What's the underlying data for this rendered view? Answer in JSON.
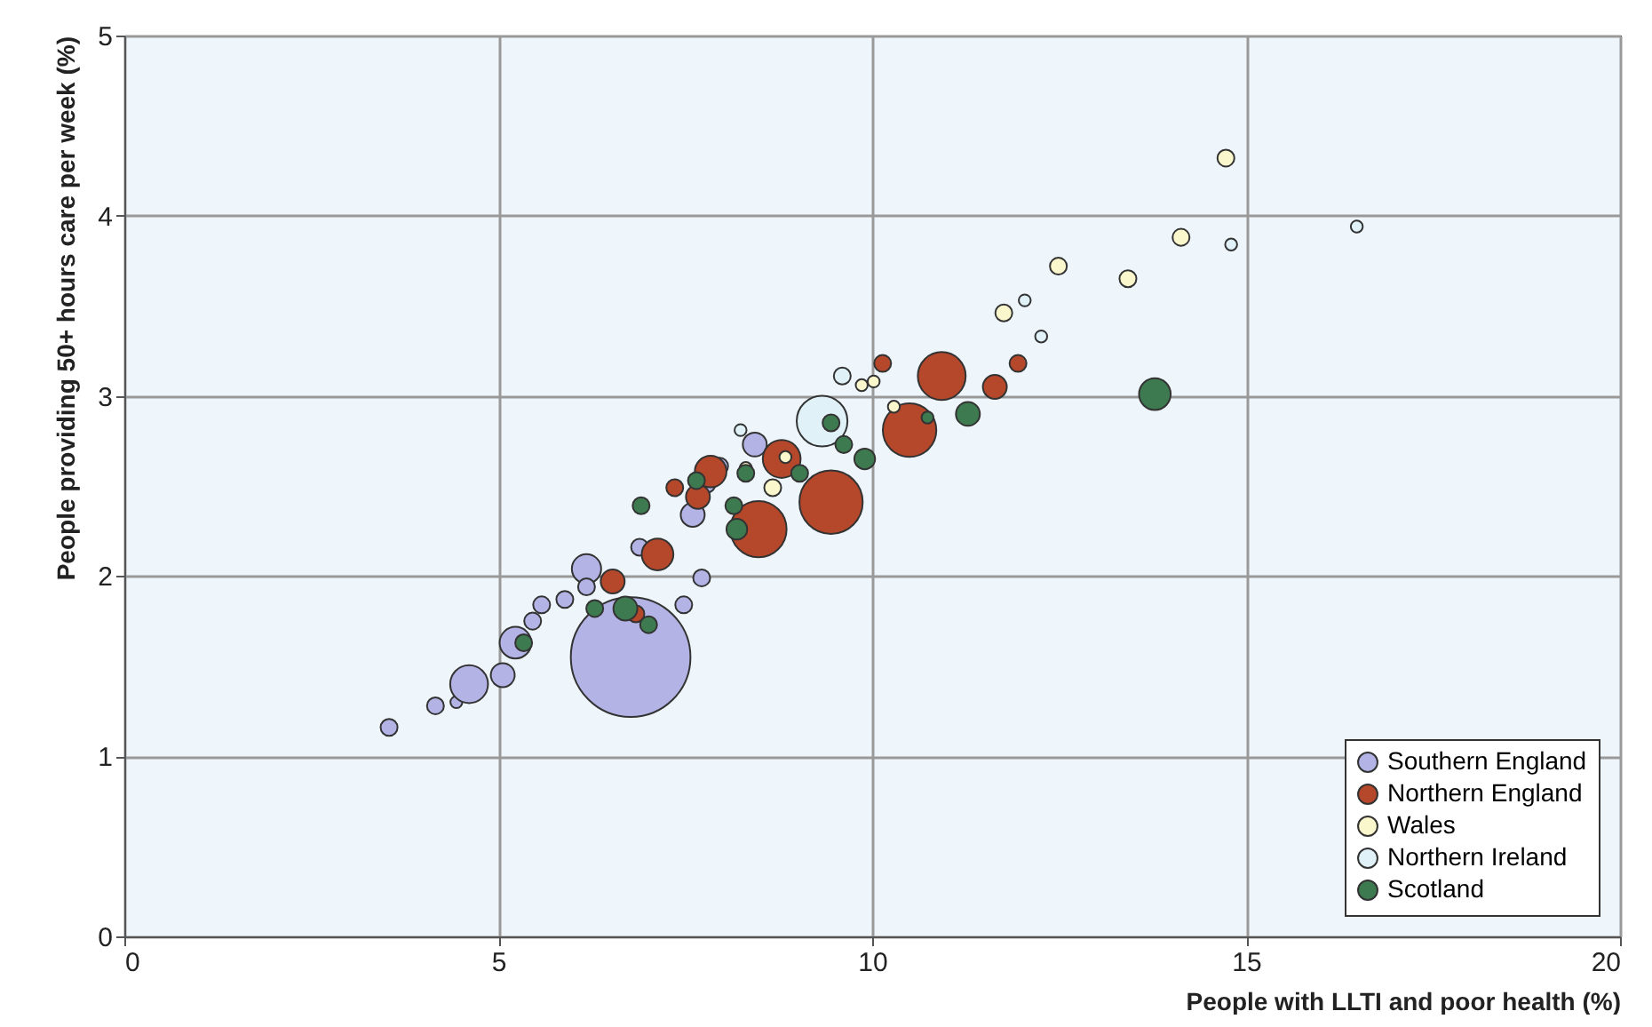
{
  "chart_data": {
    "type": "bubble",
    "xlabel": "People with LLTI and poor health (%)",
    "ylabel": "People providing 50+ hours care per week (%)",
    "xlim": [
      0,
      20
    ],
    "xticks": [
      0,
      5,
      10,
      15,
      20
    ],
    "ylim": [
      0,
      5
    ],
    "yticks": [
      0,
      1,
      2,
      3,
      4,
      5
    ],
    "grid": true,
    "legend": "bottom right",
    "marker": "circle",
    "series": [
      {
        "name": "Southern England",
        "color": "#b3b3e6",
        "x": [
          3.54,
          4.16,
          4.44,
          4.61,
          5.23,
          5.06,
          5.46,
          5.58,
          6.77,
          6.18,
          5.89,
          7.48,
          7.72,
          7.6,
          7.79,
          7.96,
          6.89,
          8.43,
          6.18
        ],
        "values": [
          1.16,
          1.28,
          1.3,
          1.4,
          1.63,
          1.45,
          1.75,
          1.84,
          1.55,
          2.04,
          1.87,
          1.84,
          1.99,
          2.34,
          2.51,
          2.61,
          2.16,
          2.73,
          1.94
        ],
        "sizes": [
          0.02,
          0.02,
          0.01,
          0.1,
          0.07,
          0.04,
          0.02,
          0.02,
          1,
          0.06,
          0.02,
          0.02,
          0.02,
          0.04,
          0.02,
          0.02,
          0.02,
          0.04,
          0.02
        ]
      },
      {
        "name": "Northern England",
        "color": "#b5472a",
        "x": [
          6.53,
          7.13,
          6.84,
          7.67,
          7.84,
          8.48,
          9.45,
          10.93,
          10.5,
          11.64,
          11.95,
          10.14,
          8.79,
          7.36
        ],
        "values": [
          1.97,
          2.12,
          1.79,
          2.44,
          2.58,
          2.26,
          2.41,
          3.11,
          2.81,
          3.05,
          3.18,
          3.18,
          2.65,
          2.49
        ],
        "sizes": [
          0.04,
          0.07,
          0.02,
          0.04,
          0.07,
          0.22,
          0.28,
          0.16,
          0.2,
          0.04,
          0.02,
          0.02,
          0.1,
          0.02
        ]
      },
      {
        "name": "Wales",
        "color": "#fbf7cc",
        "x": [
          14.73,
          14.13,
          12.49,
          13.42,
          11.76,
          9.86,
          10.02,
          10.29,
          8.67,
          8.31,
          8.84
        ],
        "values": [
          4.32,
          3.88,
          3.72,
          3.65,
          3.46,
          3.06,
          3.08,
          2.94,
          2.49,
          2.6,
          2.66
        ],
        "sizes": [
          0.02,
          0.02,
          0.02,
          0.02,
          0.02,
          0.01,
          0.01,
          0.01,
          0.02,
          0.01,
          0.01
        ]
      },
      {
        "name": "Northern Ireland",
        "color": "#e0f2f8",
        "x": [
          9.33,
          14.8,
          16.48,
          12.04,
          12.26,
          9.6,
          8.24
        ],
        "values": [
          2.86,
          3.84,
          3.94,
          3.53,
          3.33,
          3.11,
          2.81
        ],
        "sizes": [
          0.18,
          0.01,
          0.01,
          0.01,
          0.01,
          0.02,
          0.01
        ]
      },
      {
        "name": "Scotland",
        "color": "#3e7a50",
        "x": [
          13.78,
          9.45,
          11.28,
          10.74,
          9.9,
          9.62,
          8.15,
          7.65,
          8.19,
          9.03,
          6.91,
          6.7,
          7.01,
          6.29,
          5.34,
          8.31
        ],
        "values": [
          3.01,
          2.85,
          2.9,
          2.88,
          2.65,
          2.73,
          2.39,
          2.53,
          2.26,
          2.57,
          2.39,
          1.82,
          1.73,
          1.82,
          1.63,
          2.57
        ],
        "sizes": [
          0.07,
          0.02,
          0.04,
          0.01,
          0.03,
          0.02,
          0.02,
          0.02,
          0.03,
          0.02,
          0.02,
          0.04,
          0.02,
          0.02,
          0.02,
          0.02
        ]
      }
    ]
  }
}
